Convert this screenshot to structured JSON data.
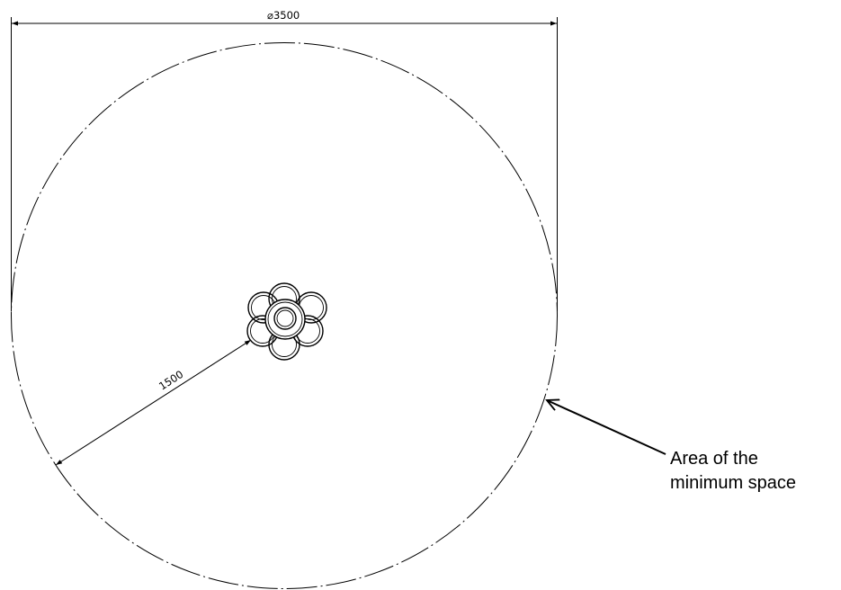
{
  "diameter_dimension": {
    "symbol": "⌀",
    "value": "3500"
  },
  "radius_dimension": {
    "value": "1500"
  },
  "callout": {
    "line1": "Area of the",
    "line2": "minimum space"
  },
  "colors": {
    "line": "#000000",
    "background": "#ffffff"
  }
}
